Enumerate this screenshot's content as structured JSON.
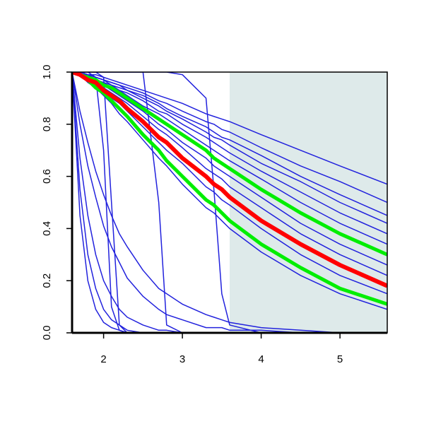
{
  "chart_data": {
    "type": "line",
    "x": [
      1.6,
      1.7,
      1.8,
      1.9,
      2.0,
      2.1,
      2.2,
      2.3,
      2.5,
      2.7,
      2.8,
      3.0,
      3.3,
      3.4,
      3.5,
      3.6,
      4.0,
      4.5,
      5.0,
      5.6
    ],
    "xlim": [
      1.6,
      5.6
    ],
    "xticks": [
      2,
      3,
      4,
      5
    ],
    "ylim": [
      0,
      1
    ],
    "yticks": [
      {
        "value": 0,
        "label": "0.0"
      },
      0.2,
      0.4,
      0.6,
      0.8,
      {
        "value": 1,
        "label": "1.0"
      }
    ],
    "shade": {
      "x": [
        3.6,
        5.6
      ],
      "color": "#deeaea"
    },
    "series": [
      {
        "color": "#2222dd",
        "linewidth": 1.5,
        "values": [
          1,
          0.45,
          0.2,
          0.09,
          0.04,
          0.02,
          0.01,
          0,
          0,
          0,
          0,
          0,
          0,
          0,
          0,
          0,
          0,
          0,
          0,
          0
        ]
      },
      {
        "color": "#2222dd",
        "linewidth": 1.5,
        "values": [
          1,
          0.55,
          0.3,
          0.17,
          0.09,
          0.05,
          0.03,
          0.01,
          0,
          0,
          0,
          0,
          0,
          0,
          0,
          0,
          0,
          0,
          0,
          0
        ]
      },
      {
        "color": "#2222dd",
        "linewidth": 1.5,
        "values": [
          1,
          0.67,
          0.45,
          0.3,
          0.2,
          0.14,
          0.09,
          0.06,
          0.03,
          0.01,
          0.01,
          0,
          0,
          0,
          0,
          0,
          0,
          0,
          0,
          0
        ]
      },
      {
        "color": "#2222dd",
        "linewidth": 1.5,
        "values": [
          1,
          0.8,
          0.64,
          0.52,
          0.41,
          0.33,
          0.27,
          0.21,
          0.14,
          0.09,
          0.07,
          0.05,
          0.02,
          0.02,
          0.02,
          0.01,
          0.01,
          0,
          0,
          0
        ]
      },
      {
        "color": "#2222dd",
        "linewidth": 1.5,
        "values": [
          1,
          0.85,
          0.73,
          0.62,
          0.53,
          0.45,
          0.38,
          0.33,
          0.24,
          0.17,
          0.15,
          0.11,
          0.07,
          0.06,
          0.05,
          0.04,
          0.02,
          0.01,
          0,
          0
        ]
      },
      {
        "color": "#2222dd",
        "linewidth": 1.5,
        "values": [
          1,
          1,
          1,
          0.98,
          0.7,
          0.1,
          0.01,
          0,
          0,
          0,
          0,
          0,
          0,
          0,
          0,
          0,
          0,
          0,
          0,
          0
        ]
      },
      {
        "color": "#2222dd",
        "linewidth": 1.5,
        "values": [
          1,
          1,
          1,
          1,
          0.98,
          0.5,
          0.03,
          0,
          0,
          0,
          0,
          0,
          0,
          0,
          0,
          0,
          0,
          0,
          0,
          0
        ]
      },
      {
        "color": "#2222dd",
        "linewidth": 1.5,
        "values": [
          1,
          1,
          1,
          1,
          1,
          1,
          1,
          1,
          1,
          0.5,
          0.03,
          0,
          0,
          0,
          0,
          0,
          0,
          0,
          0,
          0
        ]
      },
      {
        "color": "#2222dd",
        "linewidth": 1.5,
        "values": [
          1,
          1,
          1,
          1,
          1,
          1,
          1,
          1,
          1,
          1,
          1,
          0.99,
          0.9,
          0.55,
          0.15,
          0.03,
          0,
          0,
          0,
          0
        ]
      },
      {
        "color": "#2222dd",
        "linewidth": 1.5,
        "values": [
          1,
          1.0,
          0.99,
          0.99,
          0.98,
          0.97,
          0.96,
          0.95,
          0.93,
          0.91,
          0.9,
          0.88,
          0.84,
          0.83,
          0.82,
          0.81,
          0.76,
          0.7,
          0.64,
          0.57
        ]
      },
      {
        "color": "#2222dd",
        "linewidth": 1.5,
        "values": [
          1,
          1.0,
          0.99,
          0.98,
          0.97,
          0.96,
          0.95,
          0.94,
          0.92,
          0.89,
          0.88,
          0.85,
          0.81,
          0.8,
          0.78,
          0.77,
          0.71,
          0.64,
          0.58,
          0.5
        ]
      },
      {
        "color": "#2222dd",
        "linewidth": 1.5,
        "values": [
          1,
          1.0,
          0.99,
          0.98,
          0.97,
          0.96,
          0.95,
          0.93,
          0.91,
          0.88,
          0.86,
          0.83,
          0.79,
          0.77,
          0.75,
          0.74,
          0.68,
          0.6,
          0.53,
          0.45
        ]
      },
      {
        "color": "#2222dd",
        "linewidth": 1.5,
        "values": [
          1,
          1.0,
          0.99,
          0.98,
          0.97,
          0.95,
          0.94,
          0.93,
          0.9,
          0.87,
          0.85,
          0.82,
          0.77,
          0.75,
          0.74,
          0.72,
          0.65,
          0.58,
          0.5,
          0.42
        ]
      },
      {
        "color": "#2222dd",
        "linewidth": 1.5,
        "values": [
          1,
          0.99,
          0.99,
          0.97,
          0.96,
          0.95,
          0.93,
          0.92,
          0.89,
          0.85,
          0.84,
          0.8,
          0.75,
          0.73,
          0.71,
          0.69,
          0.62,
          0.54,
          0.46,
          0.38
        ]
      },
      {
        "color": "#2222dd",
        "linewidth": 1.5,
        "values": [
          1,
          0.99,
          0.98,
          0.97,
          0.96,
          0.94,
          0.93,
          0.91,
          0.87,
          0.84,
          0.82,
          0.78,
          0.72,
          0.7,
          0.68,
          0.66,
          0.59,
          0.5,
          0.42,
          0.34
        ]
      },
      {
        "color": "#2222dd",
        "linewidth": 1.5,
        "values": [
          1,
          0.99,
          0.98,
          0.96,
          0.95,
          0.93,
          0.91,
          0.89,
          0.85,
          0.8,
          0.78,
          0.73,
          0.67,
          0.64,
          0.62,
          0.6,
          0.52,
          0.42,
          0.34,
          0.26
        ]
      },
      {
        "color": "#2222dd",
        "linewidth": 1.5,
        "values": [
          1,
          0.99,
          0.98,
          0.96,
          0.94,
          0.92,
          0.9,
          0.88,
          0.83,
          0.78,
          0.76,
          0.71,
          0.63,
          0.61,
          0.59,
          0.56,
          0.48,
          0.38,
          0.3,
          0.22
        ]
      },
      {
        "color": "#2222dd",
        "linewidth": 1.5,
        "values": [
          1,
          0.99,
          0.97,
          0.95,
          0.93,
          0.9,
          0.88,
          0.85,
          0.79,
          0.73,
          0.7,
          0.65,
          0.56,
          0.54,
          0.51,
          0.49,
          0.4,
          0.3,
          0.22,
          0.15
        ]
      },
      {
        "color": "#2222dd",
        "linewidth": 1.5,
        "values": [
          1,
          0.99,
          0.96,
          0.94,
          0.91,
          0.88,
          0.84,
          0.81,
          0.74,
          0.67,
          0.64,
          0.57,
          0.48,
          0.46,
          0.43,
          0.4,
          0.31,
          0.22,
          0.15,
          0.09
        ]
      },
      {
        "color": "#00ee00",
        "linewidth": 5,
        "values": [
          1,
          0.99,
          0.98,
          0.97,
          0.95,
          0.94,
          0.92,
          0.9,
          0.86,
          0.82,
          0.8,
          0.76,
          0.7,
          0.67,
          0.65,
          0.63,
          0.55,
          0.46,
          0.38,
          0.3
        ]
      },
      {
        "color": "#00ee00",
        "linewidth": 5,
        "values": [
          1,
          0.99,
          0.97,
          0.94,
          0.92,
          0.89,
          0.86,
          0.83,
          0.76,
          0.7,
          0.66,
          0.6,
          0.51,
          0.49,
          0.46,
          0.43,
          0.34,
          0.25,
          0.17,
          0.11
        ]
      },
      {
        "color": "#ff0000",
        "linewidth": 6,
        "values": [
          1,
          0.99,
          0.97,
          0.96,
          0.93,
          0.91,
          0.89,
          0.86,
          0.81,
          0.75,
          0.73,
          0.67,
          0.6,
          0.57,
          0.55,
          0.52,
          0.43,
          0.34,
          0.26,
          0.18
        ]
      }
    ]
  }
}
